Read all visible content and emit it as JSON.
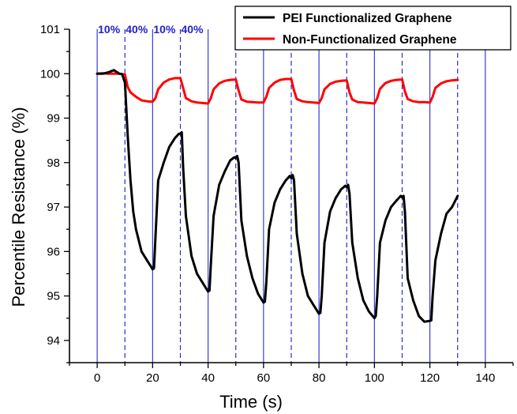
{
  "chart_data": {
    "type": "line",
    "xlabel": "Time (s)",
    "ylabel": "Percentile Resistance (%)",
    "xlim": [
      -10,
      150
    ],
    "ylim": [
      93.5,
      101
    ],
    "xticks": [
      0,
      20,
      40,
      60,
      80,
      100,
      120,
      140
    ],
    "yticks": [
      94,
      95,
      96,
      97,
      98,
      99,
      100,
      101
    ],
    "grid": false,
    "legend_position": "top-right",
    "colors": {
      "axis": "#000000",
      "solid_vline": "#3b3bd6",
      "dashed_vline": "#2b2bd0",
      "annotation": "#2323c8"
    },
    "vertical_lines": {
      "solid": [
        0,
        20,
        40,
        60,
        80,
        100,
        120,
        140
      ],
      "dashed": [
        10,
        30,
        50,
        70,
        90,
        110,
        130
      ]
    },
    "annotations": [
      {
        "text": "10%",
        "x": 0
      },
      {
        "text": "40%",
        "x": 10
      },
      {
        "text": "10%",
        "x": 20
      },
      {
        "text": "40%",
        "x": 30
      }
    ],
    "series": [
      {
        "name": "PEI Functionalized Graphene",
        "color": "#000000",
        "x": [
          0,
          2,
          4,
          6,
          8,
          9,
          10,
          11,
          12,
          13,
          14,
          16,
          18,
          20,
          20.5,
          21,
          22,
          24,
          26,
          28,
          29.5,
          30,
          30.5,
          31,
          32,
          34,
          36,
          38,
          40,
          40.5,
          41,
          42,
          44,
          46,
          48,
          49.5,
          50,
          50.5,
          51,
          52,
          54,
          56,
          58,
          60,
          60.5,
          61,
          62,
          64,
          66,
          68,
          69.5,
          70,
          70.5,
          71,
          72,
          74,
          76,
          78,
          80,
          80.5,
          81,
          82,
          84,
          86,
          88,
          89.5,
          90,
          90.5,
          91,
          92,
          94,
          96,
          98,
          100,
          100.5,
          101,
          102,
          104,
          106,
          108,
          109.5,
          110,
          110.5,
          111,
          112,
          114,
          116,
          118,
          120,
          120.5,
          121,
          122,
          124,
          126,
          128,
          130
        ],
        "values": [
          100.0,
          100.0,
          100.03,
          100.08,
          100.0,
          99.99,
          99.8,
          98.6,
          97.6,
          96.9,
          96.5,
          96.0,
          95.8,
          95.6,
          95.62,
          96.3,
          97.6,
          98.0,
          98.35,
          98.55,
          98.65,
          98.65,
          98.68,
          97.9,
          96.8,
          95.9,
          95.5,
          95.3,
          95.1,
          95.12,
          95.7,
          96.8,
          97.5,
          97.8,
          98.05,
          98.12,
          98.1,
          98.15,
          98.0,
          96.7,
          95.9,
          95.4,
          95.05,
          94.85,
          94.87,
          95.3,
          96.5,
          97.1,
          97.4,
          97.6,
          97.7,
          97.65,
          97.72,
          97.6,
          96.4,
          95.5,
          95.0,
          94.8,
          94.6,
          94.62,
          95.0,
          96.2,
          96.9,
          97.2,
          97.4,
          97.48,
          97.45,
          97.5,
          97.3,
          96.2,
          95.4,
          94.9,
          94.65,
          94.5,
          94.55,
          95.0,
          96.2,
          96.7,
          97.0,
          97.15,
          97.25,
          97.22,
          97.25,
          96.9,
          95.4,
          94.9,
          94.55,
          94.42,
          94.44,
          94.45,
          95.0,
          95.8,
          96.4,
          96.85,
          97.0,
          97.25
        ]
      },
      {
        "name": "Non-Functionalized Graphene",
        "color": "#ff0000",
        "x": [
          0,
          2,
          4,
          6,
          8,
          10,
          11,
          12,
          14,
          16,
          18,
          20,
          21,
          22,
          24,
          26,
          28,
          30,
          31,
          32,
          34,
          36,
          38,
          40,
          41,
          42,
          44,
          46,
          48,
          50,
          51,
          52,
          54,
          56,
          58,
          60,
          61,
          62,
          64,
          66,
          68,
          70,
          71,
          72,
          74,
          76,
          78,
          80,
          81,
          82,
          84,
          86,
          88,
          90,
          91,
          92,
          94,
          96,
          98,
          100,
          101,
          102,
          104,
          106,
          108,
          110,
          111,
          112,
          114,
          116,
          118,
          120,
          121,
          122,
          124,
          126,
          128,
          130
        ],
        "values": [
          100.0,
          100.01,
          100.0,
          100.0,
          100.0,
          99.98,
          99.7,
          99.58,
          99.48,
          99.4,
          99.38,
          99.37,
          99.45,
          99.65,
          99.8,
          99.87,
          99.9,
          99.9,
          99.68,
          99.45,
          99.38,
          99.35,
          99.34,
          99.33,
          99.45,
          99.65,
          99.78,
          99.84,
          99.86,
          99.87,
          99.62,
          99.42,
          99.37,
          99.36,
          99.35,
          99.35,
          99.48,
          99.68,
          99.8,
          99.86,
          99.88,
          99.88,
          99.62,
          99.43,
          99.38,
          99.36,
          99.35,
          99.34,
          99.45,
          99.65,
          99.77,
          99.82,
          99.84,
          99.85,
          99.58,
          99.42,
          99.36,
          99.35,
          99.34,
          99.33,
          99.45,
          99.66,
          99.79,
          99.84,
          99.86,
          99.87,
          99.6,
          99.43,
          99.38,
          99.36,
          99.36,
          99.35,
          99.48,
          99.68,
          99.78,
          99.83,
          99.85,
          99.86
        ]
      }
    ]
  }
}
